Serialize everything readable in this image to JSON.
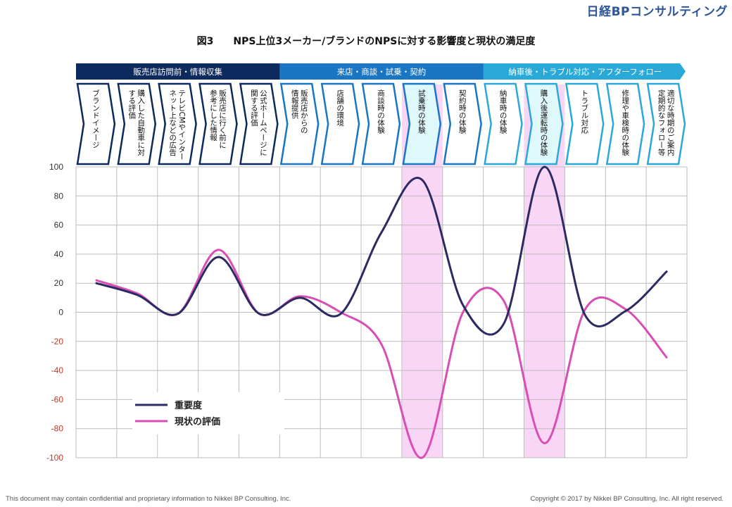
{
  "brand": "日経BPコンサルティング",
  "title": "図3　　NPS上位3メーカー/ブランドのNPSに対する影響度と現状の満足度",
  "footer": {
    "left": "This document may contain confidential and proprietary information to Nikkei BP Consulting, Inc.",
    "right": "Copyright © 2017 by Nikkei BP Consulting, Inc. All right reserved."
  },
  "colors": {
    "phase1": "#0d2a5e",
    "phase2": "#1a76c2",
    "phase3": "#29a9d8",
    "series_importance": "#2b2a63",
    "series_current": "#d94eb4",
    "highlight": "#f9d6f5",
    "negative_tick": "#c0392b"
  },
  "chart_data": {
    "type": "line",
    "title": "図3　　NPS上位3メーカー/ブランドのNPSに対する影響度と現状の満足度",
    "phases": [
      {
        "label": "販売店訪問前・情報収集",
        "span": [
          0,
          5
        ]
      },
      {
        "label": "来店・商談・試乗・契約",
        "span": [
          5,
          10
        ]
      },
      {
        "label": "納車後・トラブル対応・アフターフォロー",
        "span": [
          10,
          15
        ]
      }
    ],
    "categories": [
      "ブランドイメージ",
      "購入した自動車に対する評価",
      "テレビCMやインターネット上などの広告",
      "販売店に行く前に参考にした情報",
      "公式ホームページに関する評価",
      "販売店からの情報提供",
      "店舗の環境",
      "商談時の体験",
      "試乗時の体験",
      "契約時の体験",
      "納車時の体験",
      "購入後運転時の体験",
      "トラブル対応",
      "修理や車検時の体験",
      "適切な時期のご案内/定期的なフォロー等"
    ],
    "category_lines": [
      [
        "ブランドイメージ"
      ],
      [
        "購入した自動車に対",
        "する評価"
      ],
      [
        "テレビCMやインター",
        "ネット上などの広告"
      ],
      [
        "販売店に行く前に",
        "参考にした情報"
      ],
      [
        "公式ホームページに",
        "関する評価"
      ],
      [
        "販売店からの",
        "情報提供"
      ],
      [
        "店舗の環境"
      ],
      [
        "商談時の体験"
      ],
      [
        "試乗時の体験"
      ],
      [
        "契約時の体験"
      ],
      [
        "納車時の体験"
      ],
      [
        "購入後運転時の体験"
      ],
      [
        "トラブル対応"
      ],
      [
        "修理や車検時の体験"
      ],
      [
        "適切な時期のご案内",
        "定期的なフォロー等"
      ]
    ],
    "highlighted_categories": [
      8,
      11
    ],
    "series": [
      {
        "name": "重要度",
        "values": [
          20,
          12,
          -1,
          38,
          -1,
          10,
          -1,
          55,
          91,
          5,
          -8,
          100,
          -2,
          1,
          28
        ]
      },
      {
        "name": "現状の評価",
        "values": [
          22,
          13,
          -1,
          43,
          -1,
          11,
          0,
          -22,
          -100,
          0,
          8,
          -90,
          2,
          2,
          -31
        ]
      }
    ],
    "ylim": [
      -100,
      100
    ],
    "yticks": [
      100,
      80,
      60,
      40,
      20,
      0,
      -20,
      -40,
      -60,
      -80,
      -100
    ],
    "grid": true,
    "legend_position": "bottom-left"
  }
}
